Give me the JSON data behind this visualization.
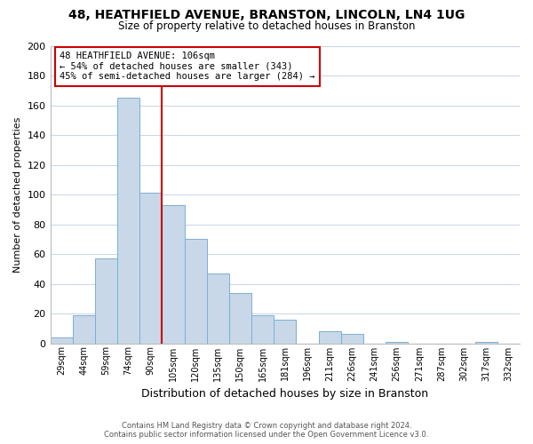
{
  "title": "48, HEATHFIELD AVENUE, BRANSTON, LINCOLN, LN4 1UG",
  "subtitle": "Size of property relative to detached houses in Branston",
  "xlabel": "Distribution of detached houses by size in Branston",
  "ylabel": "Number of detached properties",
  "bar_labels": [
    "29sqm",
    "44sqm",
    "59sqm",
    "74sqm",
    "90sqm",
    "105sqm",
    "120sqm",
    "135sqm",
    "150sqm",
    "165sqm",
    "181sqm",
    "196sqm",
    "211sqm",
    "226sqm",
    "241sqm",
    "256sqm",
    "271sqm",
    "287sqm",
    "302sqm",
    "317sqm",
    "332sqm"
  ],
  "bar_values": [
    4,
    19,
    57,
    165,
    101,
    93,
    70,
    47,
    34,
    19,
    16,
    0,
    8,
    6,
    0,
    1,
    0,
    0,
    0,
    1,
    0
  ],
  "bar_color": "#c8d8e8",
  "bar_edge_color": "#7bafd4",
  "highlight_line_color": "#cc0000",
  "ylim": [
    0,
    200
  ],
  "yticks": [
    0,
    20,
    40,
    60,
    80,
    100,
    120,
    140,
    160,
    180,
    200
  ],
  "annotation_title": "48 HEATHFIELD AVENUE: 106sqm",
  "annotation_line1": "← 54% of detached houses are smaller (343)",
  "annotation_line2": "45% of semi-detached houses are larger (284) →",
  "annotation_box_color": "#ffffff",
  "annotation_box_edge": "#cc0000",
  "footer_line1": "Contains HM Land Registry data © Crown copyright and database right 2024.",
  "footer_line2": "Contains public sector information licensed under the Open Government Licence v3.0.",
  "background_color": "#ffffff",
  "grid_color": "#ccd8e8"
}
